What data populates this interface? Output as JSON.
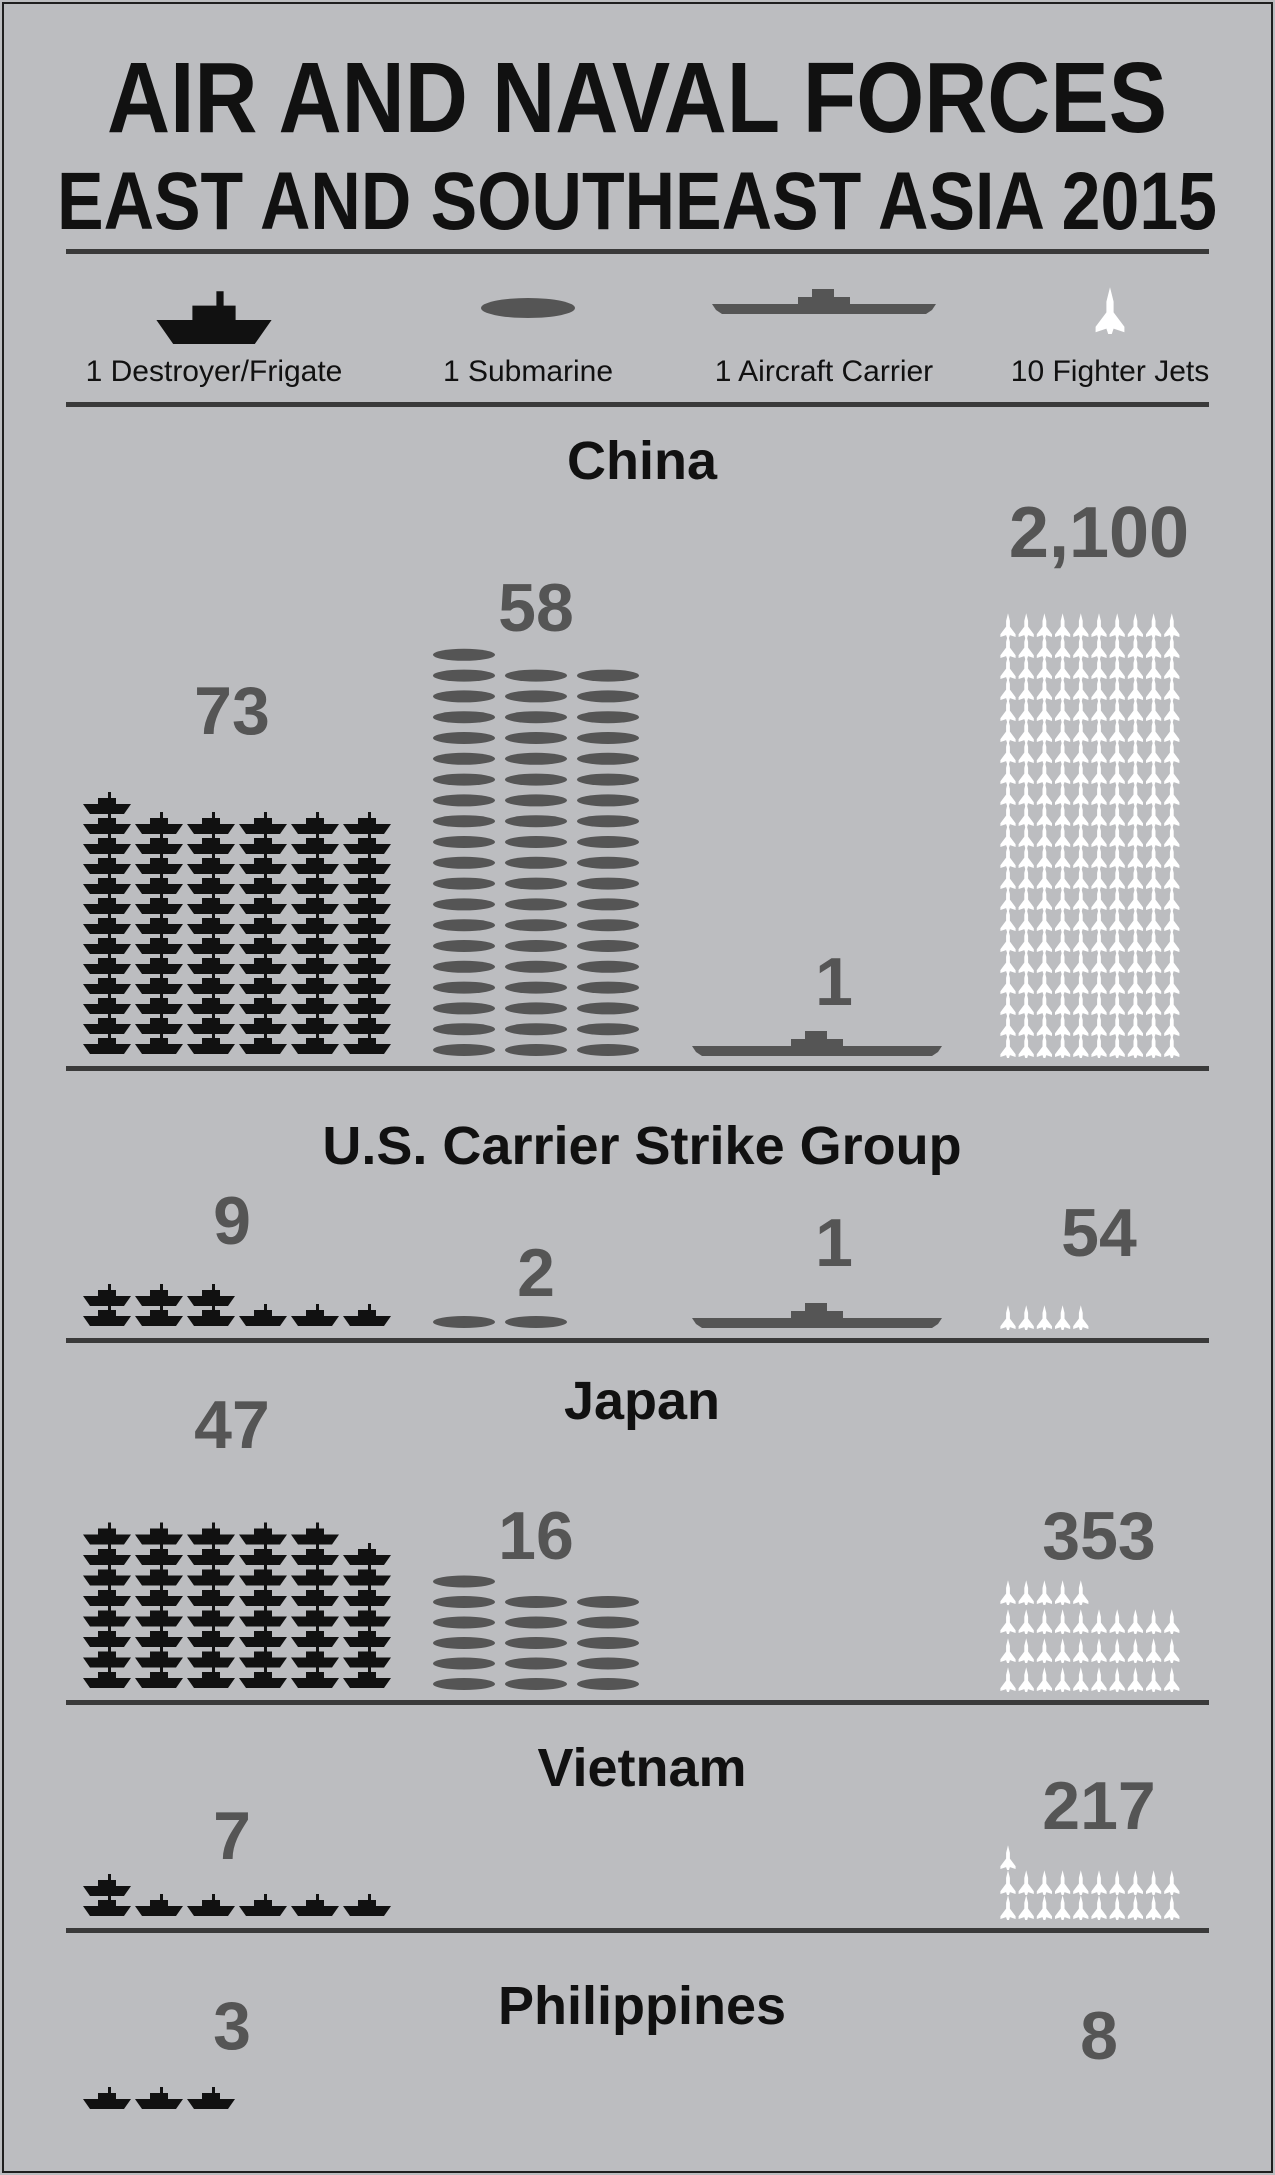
{
  "title": "AIR AND NAVAL FORCES",
  "subtitle": "EAST AND SOUTHEAST ASIA 2015",
  "colors": {
    "background": "#bcbdc0",
    "destroyer": "#111111",
    "submarine": "#555555",
    "carrier": "#555555",
    "jet": "#ffffff",
    "number": "#555555",
    "text": "#111111",
    "rule": "#3a3a3a"
  },
  "legend": [
    {
      "key": "destroyer",
      "label": "1 Destroyer/Frigate",
      "icon": "destroyer-icon",
      "units_per_icon": 1
    },
    {
      "key": "submarine",
      "label": "1 Submarine",
      "icon": "submarine-icon",
      "units_per_icon": 1
    },
    {
      "key": "carrier",
      "label": "1 Aircraft Carrier",
      "icon": "aircraft-carrier-icon",
      "units_per_icon": 1
    },
    {
      "key": "jets",
      "label": "10 Fighter Jets",
      "icon": "fighter-jet-icon",
      "units_per_icon": 10
    }
  ],
  "chart_data": {
    "type": "pictograph",
    "categories": [
      "Destroyer/Frigate",
      "Submarine",
      "Aircraft Carrier",
      "Fighter Jets"
    ],
    "series": [
      {
        "name": "China",
        "values": {
          "destroyer": 73,
          "submarine": 58,
          "carrier": 1,
          "jets": 2100
        },
        "labels": {
          "destroyer": "73",
          "submarine": "58",
          "carrier": "1",
          "jets": "2,100"
        }
      },
      {
        "name": "U.S. Carrier Strike Group",
        "values": {
          "destroyer": 9,
          "submarine": 2,
          "carrier": 1,
          "jets": 54
        },
        "labels": {
          "destroyer": "9",
          "submarine": "2",
          "carrier": "1",
          "jets": "54"
        }
      },
      {
        "name": "Japan",
        "values": {
          "destroyer": 47,
          "submarine": 16,
          "carrier": 0,
          "jets": 353
        },
        "labels": {
          "destroyer": "47",
          "submarine": "16",
          "carrier": "",
          "jets": "353"
        }
      },
      {
        "name": "Vietnam",
        "values": {
          "destroyer": 7,
          "submarine": 0,
          "carrier": 0,
          "jets": 217
        },
        "labels": {
          "destroyer": "7",
          "submarine": "",
          "carrier": "",
          "jets": "217"
        }
      },
      {
        "name": "Philippines",
        "values": {
          "destroyer": 3,
          "submarine": 0,
          "carrier": 0,
          "jets": 8
        },
        "labels": {
          "destroyer": "3",
          "submarine": "",
          "carrier": "",
          "jets": "8"
        }
      }
    ]
  }
}
